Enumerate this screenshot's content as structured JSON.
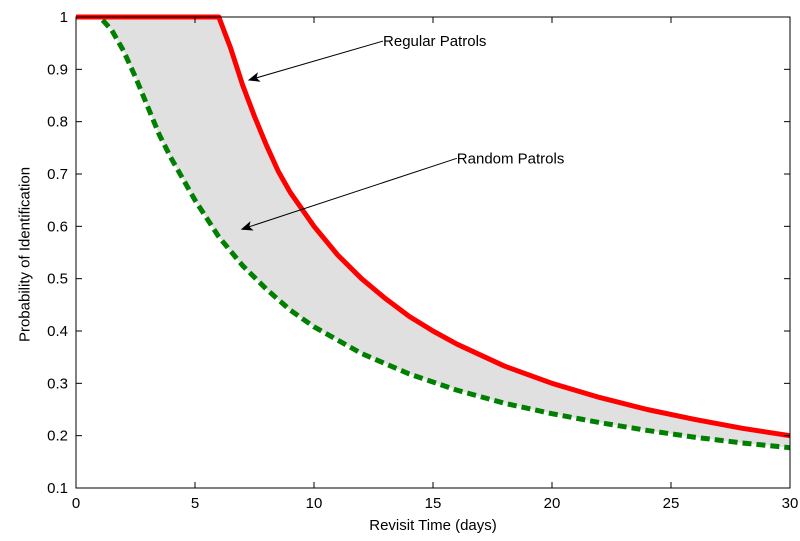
{
  "chart_data": {
    "type": "line",
    "title": "",
    "xlabel": "Revisit Time (days)",
    "ylabel": "Probability of Identification",
    "xlim": [
      0,
      30
    ],
    "ylim": [
      0.1,
      1
    ],
    "grid": false,
    "xticks": [
      0,
      5,
      10,
      15,
      20,
      25,
      30
    ],
    "yticks": [
      0.1,
      0.2,
      0.3,
      0.4,
      0.5,
      0.6,
      0.7,
      0.8,
      0.9,
      1
    ],
    "xtick_labels": [
      "0",
      "5",
      "10",
      "15",
      "20",
      "25",
      "30"
    ],
    "ytick_labels": [
      "0.1",
      "0.2",
      "0.3",
      "0.4",
      "0.5",
      "0.6",
      "0.7",
      "0.8",
      "0.9",
      "1"
    ],
    "fill_between": {
      "color": "#e0e0e0",
      "between": [
        "regular",
        "random"
      ]
    },
    "series": [
      {
        "id": "regular",
        "color": "#ff0000",
        "style": "solid",
        "x": [
          0,
          6,
          6.5,
          7,
          7.5,
          8,
          8.5,
          9,
          10,
          11,
          12,
          13,
          14,
          15,
          16,
          18,
          20,
          22,
          24,
          26,
          28,
          30
        ],
        "y": [
          1.0,
          1.0,
          0.94,
          0.87,
          0.81,
          0.755,
          0.705,
          0.665,
          0.6,
          0.545,
          0.5,
          0.462,
          0.428,
          0.4,
          0.375,
          0.333,
          0.3,
          0.273,
          0.25,
          0.231,
          0.214,
          0.2
        ]
      },
      {
        "id": "random",
        "color": "#008000",
        "style": "dashed",
        "x": [
          0,
          1,
          1.5,
          2,
          2.5,
          3,
          3.5,
          4,
          5,
          6,
          7,
          8,
          9,
          10,
          12,
          14,
          16,
          18,
          20,
          22,
          24,
          26,
          28,
          30
        ],
        "y": [
          1.0,
          1.0,
          0.975,
          0.935,
          0.885,
          0.83,
          0.775,
          0.73,
          0.65,
          0.58,
          0.525,
          0.48,
          0.44,
          0.408,
          0.357,
          0.318,
          0.287,
          0.262,
          0.242,
          0.225,
          0.21,
          0.197,
          0.186,
          0.177
        ]
      }
    ],
    "annotations": [
      {
        "text": "Regular Patrols",
        "x": 12.9,
        "y": 0.954,
        "arrow_to": [
          7.3,
          0.88
        ]
      },
      {
        "text": "Random Patrols",
        "x": 16.0,
        "y": 0.73,
        "arrow_to": [
          7.0,
          0.595
        ]
      }
    ]
  }
}
